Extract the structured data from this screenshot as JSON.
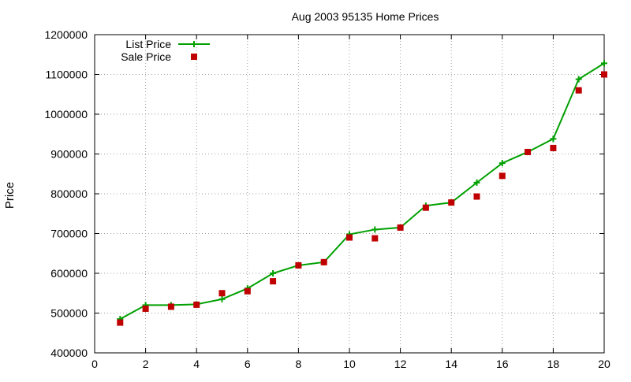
{
  "chart_data": {
    "type": "line",
    "title": "Aug 2003 95135 Home Prices",
    "xlabel": "",
    "ylabel": "Price",
    "xlim": [
      0,
      20
    ],
    "ylim": [
      400000,
      1200000
    ],
    "xticks": [
      0,
      2,
      4,
      6,
      8,
      10,
      12,
      14,
      16,
      18,
      20
    ],
    "yticks": [
      400000,
      500000,
      600000,
      700000,
      800000,
      900000,
      1000000,
      1100000,
      1200000
    ],
    "grid": true,
    "legend_position": "top-left",
    "series": [
      {
        "name": "List Price",
        "style": "line+cross",
        "color": "#00a000",
        "x": [
          1,
          2,
          3,
          4,
          5,
          6,
          7,
          8,
          9,
          10,
          11,
          12,
          13,
          14,
          15,
          16,
          17,
          18,
          19,
          20
        ],
        "values": [
          485000,
          520000,
          520000,
          522000,
          535000,
          562000,
          600000,
          620000,
          628000,
          698000,
          710000,
          715000,
          770000,
          778000,
          828000,
          877000,
          905000,
          938000,
          1088000,
          1128000
        ]
      },
      {
        "name": "Sale Price",
        "style": "square",
        "color": "#c00000",
        "x": [
          1,
          2,
          3,
          4,
          5,
          6,
          7,
          8,
          9,
          10,
          11,
          12,
          13,
          14,
          15,
          16,
          17,
          18,
          19,
          20
        ],
        "values": [
          476000,
          511000,
          516000,
          521000,
          550000,
          555000,
          580000,
          620000,
          628000,
          690000,
          688000,
          715000,
          765000,
          778000,
          793000,
          845000,
          905000,
          915000,
          1060000,
          1100000
        ]
      }
    ]
  }
}
